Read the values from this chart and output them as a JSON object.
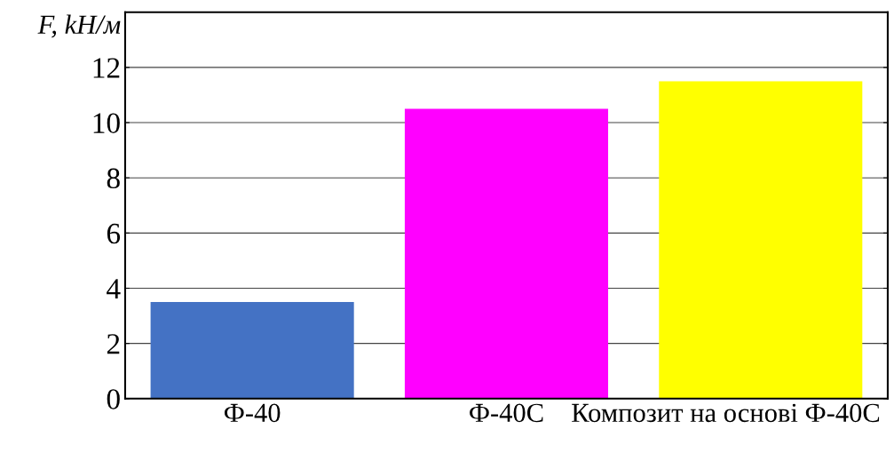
{
  "chart_data": {
    "type": "bar",
    "ylabel": "F, kH/м",
    "categories": [
      "Ф-40",
      "Ф-40С",
      "Композит на основі Ф-40С"
    ],
    "values": [
      3.5,
      10.5,
      11.5
    ],
    "colors": [
      "#4472c4",
      "#ff00ff",
      "#ffff00"
    ],
    "ylim": [
      0,
      14
    ],
    "yticks": [
      0,
      2,
      4,
      6,
      8,
      10,
      12
    ],
    "grid": "y"
  }
}
